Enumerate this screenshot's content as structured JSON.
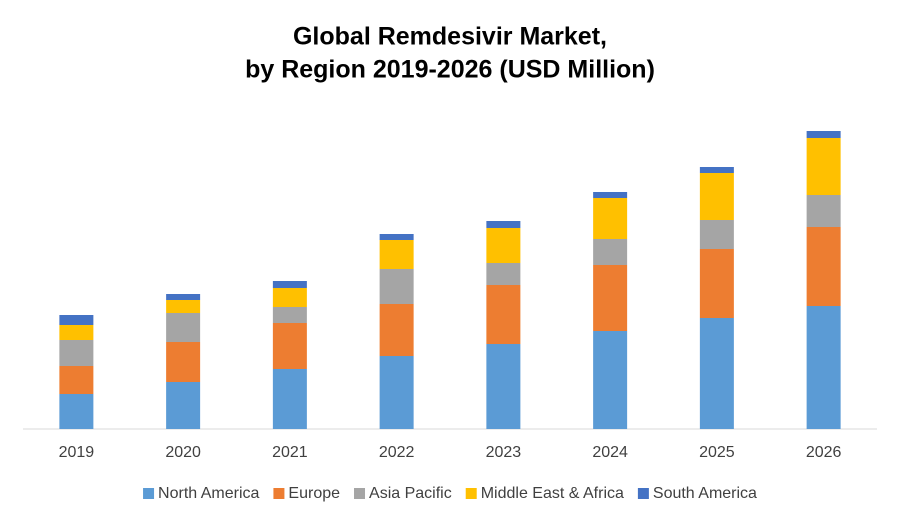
{
  "chart_data": {
    "type": "stacked-bar",
    "title": [
      "Global Remdesivir Market,",
      "by Region 2019-2026 (USD Million)"
    ],
    "categories": [
      "2019",
      "2020",
      "2021",
      "2022",
      "2023",
      "2024",
      "2025",
      "2026"
    ],
    "series": [
      {
        "name": "North America",
        "color": "#5b9bd5",
        "values": [
          35,
          47,
          60,
          73,
          85,
          98,
          111,
          123
        ]
      },
      {
        "name": "Europe",
        "color": "#ed7d31",
        "values": [
          28,
          40,
          46,
          52,
          59,
          66,
          69,
          79
        ]
      },
      {
        "name": "Asia Pacific",
        "color": "#a5a5a5",
        "values": [
          26,
          29,
          16,
          35,
          22,
          26,
          29,
          32
        ]
      },
      {
        "name": "Middle East & Africa",
        "color": "#ffc000",
        "values": [
          15,
          13,
          19,
          29,
          35,
          41,
          47,
          57
        ]
      },
      {
        "name": "South America",
        "color": "#4472c4",
        "values": [
          10,
          6,
          7,
          6,
          7,
          6,
          6,
          7
        ]
      }
    ],
    "ylim": [
      0,
      300
    ]
  }
}
